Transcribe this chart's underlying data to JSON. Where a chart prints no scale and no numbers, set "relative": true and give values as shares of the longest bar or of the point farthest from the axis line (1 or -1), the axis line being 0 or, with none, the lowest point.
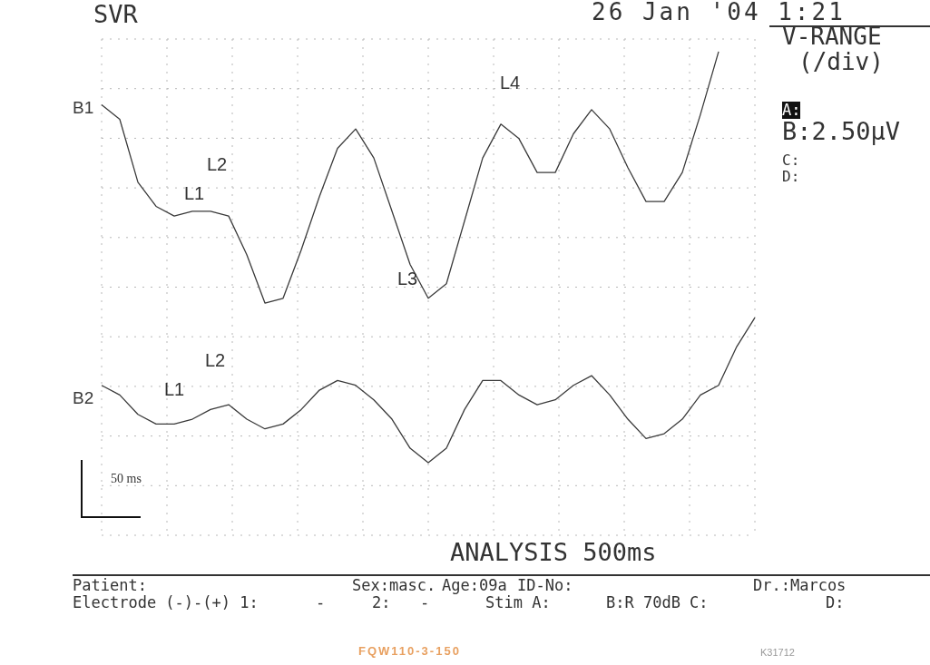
{
  "chart_data": {
    "type": "line",
    "title": "SVR",
    "subtitle": "26 Jan '04 1:21",
    "relative": true,
    "legend": false,
    "grid": true,
    "marker": "none",
    "line_style": "solid",
    "categories": [
      null,
      null,
      null,
      null,
      null,
      null,
      null,
      null,
      null,
      null,
      null,
      null,
      null,
      null,
      null,
      null,
      null,
      null,
      null,
      null,
      null,
      null,
      null,
      null,
      null,
      null,
      null,
      null,
      null,
      null,
      null,
      null,
      null,
      null,
      null,
      null,
      null
    ],
    "series": [
      {
        "name": "B1",
        "color": "#3a3a3a",
        "values": [
          0.89,
          0.86,
          0.73,
          0.68,
          0.66,
          0.67,
          0.67,
          0.66,
          0.58,
          0.48,
          0.49,
          0.59,
          0.7,
          0.8,
          0.84,
          0.78,
          0.67,
          0.56,
          0.49,
          0.52,
          0.65,
          0.78,
          0.85,
          0.82,
          0.75,
          0.75,
          0.83,
          0.88,
          0.84,
          0.76,
          0.69,
          0.69,
          0.75,
          0.87,
          1,
          null,
          null
        ]
      },
      {
        "name": "B2",
        "color": "#3a3a3a",
        "values": [
          0.31,
          0.29,
          0.25,
          0.23,
          0.23,
          0.24,
          0.26,
          0.27,
          0.24,
          0.22,
          0.23,
          0.26,
          0.3,
          0.32,
          0.31,
          0.28,
          0.24,
          0.18,
          0.15,
          0.18,
          0.26,
          0.32,
          0.32,
          0.29,
          0.27,
          0.28,
          0.31,
          0.33,
          0.29,
          0.24,
          0.2,
          0.21,
          0.24,
          0.29,
          0.31,
          0.39,
          0.45
        ]
      }
    ],
    "annotations": [
      "L1",
      "L2",
      "L3",
      "L4",
      "L1",
      "L2",
      "V-RANGE",
      "(/div)",
      "A:",
      "B:2.50µV",
      "C:",
      "D:",
      "50 ms",
      "ANALYSIS 500ms",
      "Patient:",
      "Sex:masc.",
      "Age:09a",
      "ID-No:",
      "Dr.:Marcos",
      "Electrode (-)-(+) 1:",
      "-",
      "2:",
      "-",
      "Stim A:",
      "B:R 70dB C:",
      "D:",
      "FQW110-3-150",
      "K31712"
    ]
  }
}
